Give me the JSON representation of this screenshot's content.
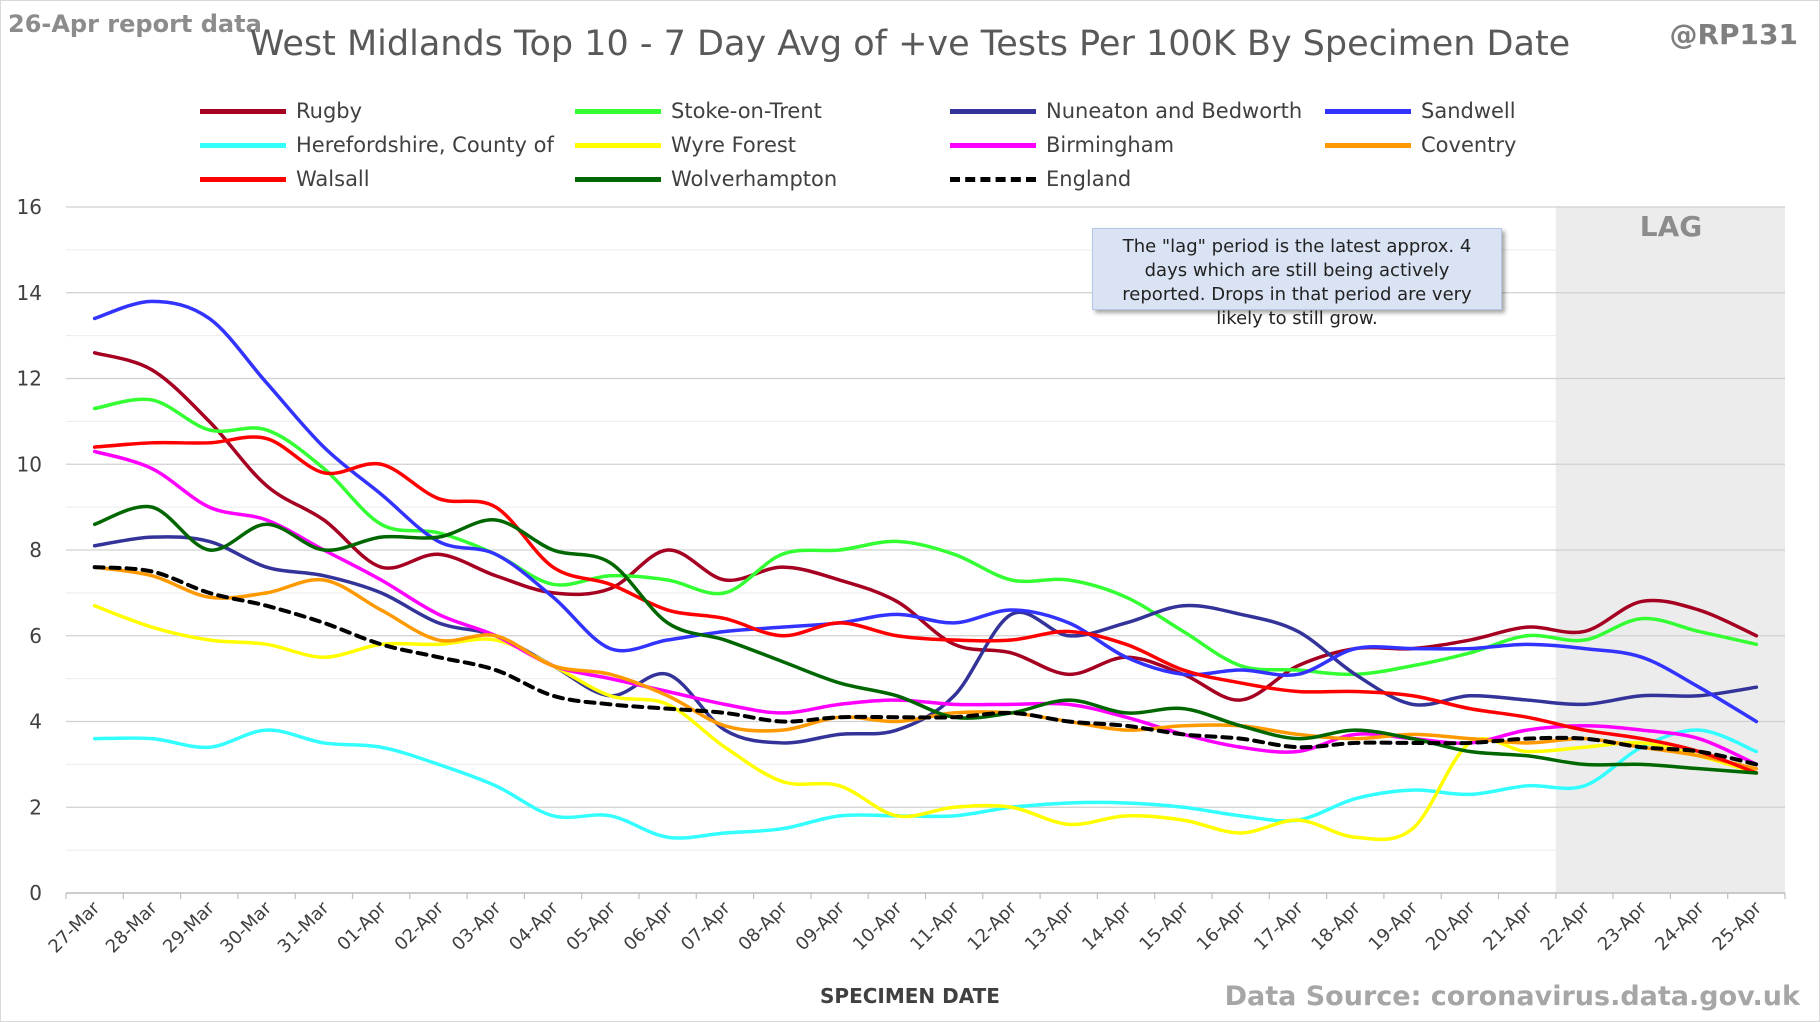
{
  "header": {
    "report_note": "26-Apr report data",
    "handle": "@RP131"
  },
  "footer": {
    "source": "Data Source: coronavirus.data.gov.uk"
  },
  "annotation": {
    "lag_label": "LAG",
    "info_text": "The \"lag\" period is the latest approx. 4 days which are still being actively reported.  Drops in that period are very likely to still grow."
  },
  "chart_data": {
    "type": "line",
    "title": "West Midlands Top 10 - 7 Day Avg of +ve Tests Per 100K By Specimen Date",
    "xlabel": "SPECIMEN DATE",
    "ylabel": "",
    "ylim": [
      0,
      16
    ],
    "yticks": [
      0,
      2,
      4,
      6,
      8,
      10,
      12,
      14,
      16
    ],
    "grid": true,
    "legend_position": "top",
    "lag_period": [
      "22-Apr",
      "25-Apr"
    ],
    "categories": [
      "27-Mar",
      "28-Mar",
      "29-Mar",
      "30-Mar",
      "31-Mar",
      "01-Apr",
      "02-Apr",
      "03-Apr",
      "04-Apr",
      "05-Apr",
      "06-Apr",
      "07-Apr",
      "08-Apr",
      "09-Apr",
      "10-Apr",
      "11-Apr",
      "12-Apr",
      "13-Apr",
      "14-Apr",
      "15-Apr",
      "16-Apr",
      "17-Apr",
      "18-Apr",
      "19-Apr",
      "20-Apr",
      "21-Apr",
      "22-Apr",
      "23-Apr",
      "24-Apr",
      "25-Apr"
    ],
    "series": [
      {
        "name": "Rugby",
        "color": "#a50021",
        "dash": false,
        "values": [
          12.6,
          12.2,
          11.0,
          9.5,
          8.7,
          7.6,
          7.9,
          7.4,
          7.0,
          7.1,
          8.0,
          7.3,
          7.6,
          7.3,
          6.8,
          5.8,
          5.6,
          5.1,
          5.5,
          5.1,
          4.5,
          5.3,
          5.7,
          5.7,
          5.9,
          6.2,
          6.1,
          6.8,
          6.6,
          6.0
        ]
      },
      {
        "name": "Stoke-on-Trent",
        "color": "#33ff33",
        "dash": false,
        "values": [
          11.3,
          11.5,
          10.8,
          10.8,
          9.9,
          8.6,
          8.4,
          7.9,
          7.2,
          7.4,
          7.3,
          7.0,
          7.9,
          8.0,
          8.2,
          7.9,
          7.3,
          7.3,
          6.9,
          6.1,
          5.3,
          5.2,
          5.1,
          5.3,
          5.6,
          6.0,
          5.9,
          6.4,
          6.1,
          5.8
        ]
      },
      {
        "name": "Nuneaton and Bedworth",
        "color": "#333399",
        "dash": false,
        "values": [
          8.1,
          8.3,
          8.2,
          7.6,
          7.4,
          7.0,
          6.3,
          6.0,
          5.3,
          4.6,
          5.1,
          3.8,
          3.5,
          3.7,
          3.8,
          4.6,
          6.5,
          6.0,
          6.3,
          6.7,
          6.5,
          6.1,
          5.1,
          4.4,
          4.6,
          4.5,
          4.4,
          4.6,
          4.6,
          4.8
        ]
      },
      {
        "name": "Sandwell",
        "color": "#3333ff",
        "dash": false,
        "values": [
          13.4,
          13.8,
          13.4,
          11.9,
          10.4,
          9.3,
          8.2,
          7.9,
          6.9,
          5.7,
          5.9,
          6.1,
          6.2,
          6.3,
          6.5,
          6.3,
          6.6,
          6.3,
          5.5,
          5.1,
          5.2,
          5.1,
          5.7,
          5.7,
          5.7,
          5.8,
          5.7,
          5.5,
          4.8,
          4.0
        ]
      },
      {
        "name": "Herefordshire, County of",
        "color": "#33ffff",
        "dash": false,
        "values": [
          3.6,
          3.6,
          3.4,
          3.8,
          3.5,
          3.4,
          3.0,
          2.5,
          1.8,
          1.8,
          1.3,
          1.4,
          1.5,
          1.8,
          1.8,
          1.8,
          2.0,
          2.1,
          2.1,
          2.0,
          1.8,
          1.7,
          2.2,
          2.4,
          2.3,
          2.5,
          2.5,
          3.4,
          3.8,
          3.3
        ]
      },
      {
        "name": "Wyre Forest",
        "color": "#ffff00",
        "dash": false,
        "values": [
          6.7,
          6.2,
          5.9,
          5.8,
          5.5,
          5.8,
          5.8,
          5.9,
          5.3,
          4.6,
          4.4,
          3.4,
          2.6,
          2.5,
          1.8,
          2.0,
          2.0,
          1.6,
          1.8,
          1.7,
          1.4,
          1.7,
          1.3,
          1.5,
          3.5,
          3.3,
          3.4,
          3.5,
          3.2,
          2.8
        ]
      },
      {
        "name": "Birmingham",
        "color": "#ff00ff",
        "dash": false,
        "values": [
          10.3,
          9.9,
          9.0,
          8.7,
          8.0,
          7.3,
          6.5,
          6.0,
          5.3,
          5.0,
          4.7,
          4.4,
          4.2,
          4.4,
          4.5,
          4.4,
          4.4,
          4.4,
          4.1,
          3.7,
          3.4,
          3.3,
          3.7,
          3.6,
          3.5,
          3.8,
          3.9,
          3.8,
          3.6,
          3.0
        ]
      },
      {
        "name": "Coventry",
        "color": "#ff9900",
        "dash": false,
        "values": [
          7.6,
          7.4,
          6.9,
          7.0,
          7.3,
          6.6,
          5.9,
          6.0,
          5.3,
          5.1,
          4.6,
          3.9,
          3.8,
          4.1,
          4.0,
          4.2,
          4.2,
          4.0,
          3.8,
          3.9,
          3.9,
          3.7,
          3.6,
          3.7,
          3.6,
          3.5,
          3.6,
          3.4,
          3.2,
          2.9
        ]
      },
      {
        "name": "Walsall",
        "color": "#ff0000",
        "dash": false,
        "values": [
          10.4,
          10.5,
          10.5,
          10.6,
          9.8,
          10.0,
          9.2,
          9.0,
          7.6,
          7.2,
          6.6,
          6.4,
          6.0,
          6.3,
          6.0,
          5.9,
          5.9,
          6.1,
          5.8,
          5.2,
          4.9,
          4.7,
          4.7,
          4.6,
          4.3,
          4.1,
          3.8,
          3.6,
          3.3,
          2.8
        ]
      },
      {
        "name": "Wolverhampton",
        "color": "#006600",
        "dash": false,
        "values": [
          8.6,
          9.0,
          8.0,
          8.6,
          8.0,
          8.3,
          8.3,
          8.7,
          8.0,
          7.7,
          6.3,
          5.9,
          5.4,
          4.9,
          4.6,
          4.1,
          4.2,
          4.5,
          4.2,
          4.3,
          3.9,
          3.6,
          3.8,
          3.6,
          3.3,
          3.2,
          3.0,
          3.0,
          2.9,
          2.8
        ]
      },
      {
        "name": "England",
        "color": "#000000",
        "dash": true,
        "values": [
          7.6,
          7.5,
          7.0,
          6.7,
          6.3,
          5.8,
          5.5,
          5.2,
          4.6,
          4.4,
          4.3,
          4.2,
          4.0,
          4.1,
          4.1,
          4.1,
          4.2,
          4.0,
          3.9,
          3.7,
          3.6,
          3.4,
          3.5,
          3.5,
          3.5,
          3.6,
          3.6,
          3.4,
          3.3,
          3.0
        ]
      }
    ]
  }
}
